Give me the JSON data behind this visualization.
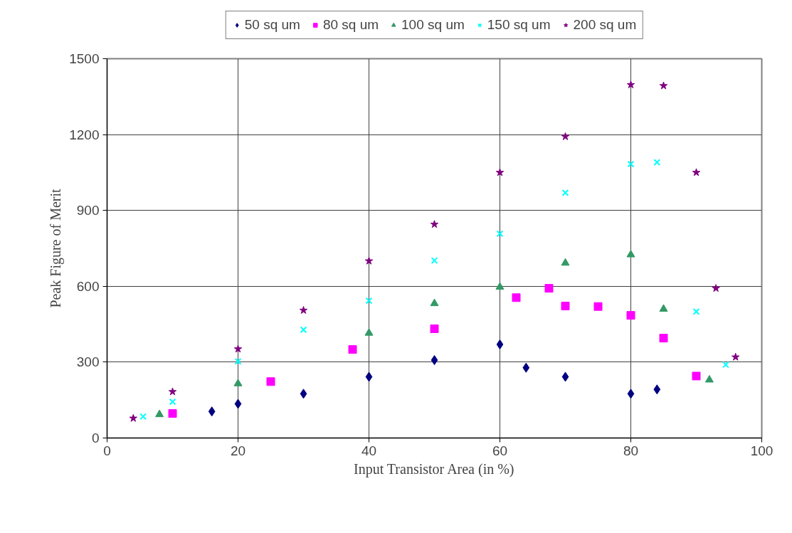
{
  "chart_data": {
    "type": "scatter",
    "xlabel": "Input Transistor Area (in %)",
    "ylabel": "Peak Figure of Merit",
    "xlim": [
      0,
      100
    ],
    "xticks": [
      0,
      20,
      40,
      60,
      80,
      100
    ],
    "ylim": [
      0,
      1500
    ],
    "yticks": [
      0,
      300,
      600,
      900,
      1200,
      1500
    ],
    "grid": true,
    "legend": "top",
    "series": [
      {
        "name": "50 sq um",
        "color": "#000080",
        "marker": "diamond",
        "x": [
          16,
          20,
          30,
          40,
          50,
          60,
          64,
          70,
          80,
          84
        ],
        "values": [
          105,
          135,
          175,
          242,
          308,
          370,
          278,
          242,
          175,
          192
        ]
      },
      {
        "name": "80 sq um",
        "color": "#ff00ff",
        "marker": "square",
        "x": [
          10,
          25,
          37.5,
          50,
          62.5,
          67.5,
          70,
          75,
          80,
          85,
          90
        ],
        "values": [
          97,
          223,
          350,
          432,
          555,
          592,
          522,
          520,
          485,
          395,
          245
        ]
      },
      {
        "name": "100 sq um",
        "color": "#339966",
        "marker": "triangle",
        "x": [
          8,
          20,
          40,
          50,
          60,
          70,
          80,
          85,
          92
        ],
        "values": [
          93,
          215,
          415,
          532,
          597,
          692,
          725,
          510,
          230
        ]
      },
      {
        "name": "150 sq um",
        "color": "#00ffff",
        "marker": "cross",
        "x": [
          5.5,
          10,
          20,
          30,
          40,
          50,
          60,
          70,
          80,
          84,
          90,
          94.5
        ],
        "values": [
          85,
          143,
          303,
          428,
          543,
          702,
          808,
          970,
          1083,
          1090,
          500,
          290
        ]
      },
      {
        "name": "200 sq um",
        "color": "#800080",
        "marker": "star",
        "x": [
          4,
          10,
          20,
          30,
          40,
          50,
          60,
          70,
          80,
          85,
          90,
          93,
          96
        ],
        "values": [
          78,
          183,
          352,
          505,
          700,
          845,
          1050,
          1192,
          1397,
          1393,
          1050,
          592,
          320
        ]
      }
    ]
  }
}
